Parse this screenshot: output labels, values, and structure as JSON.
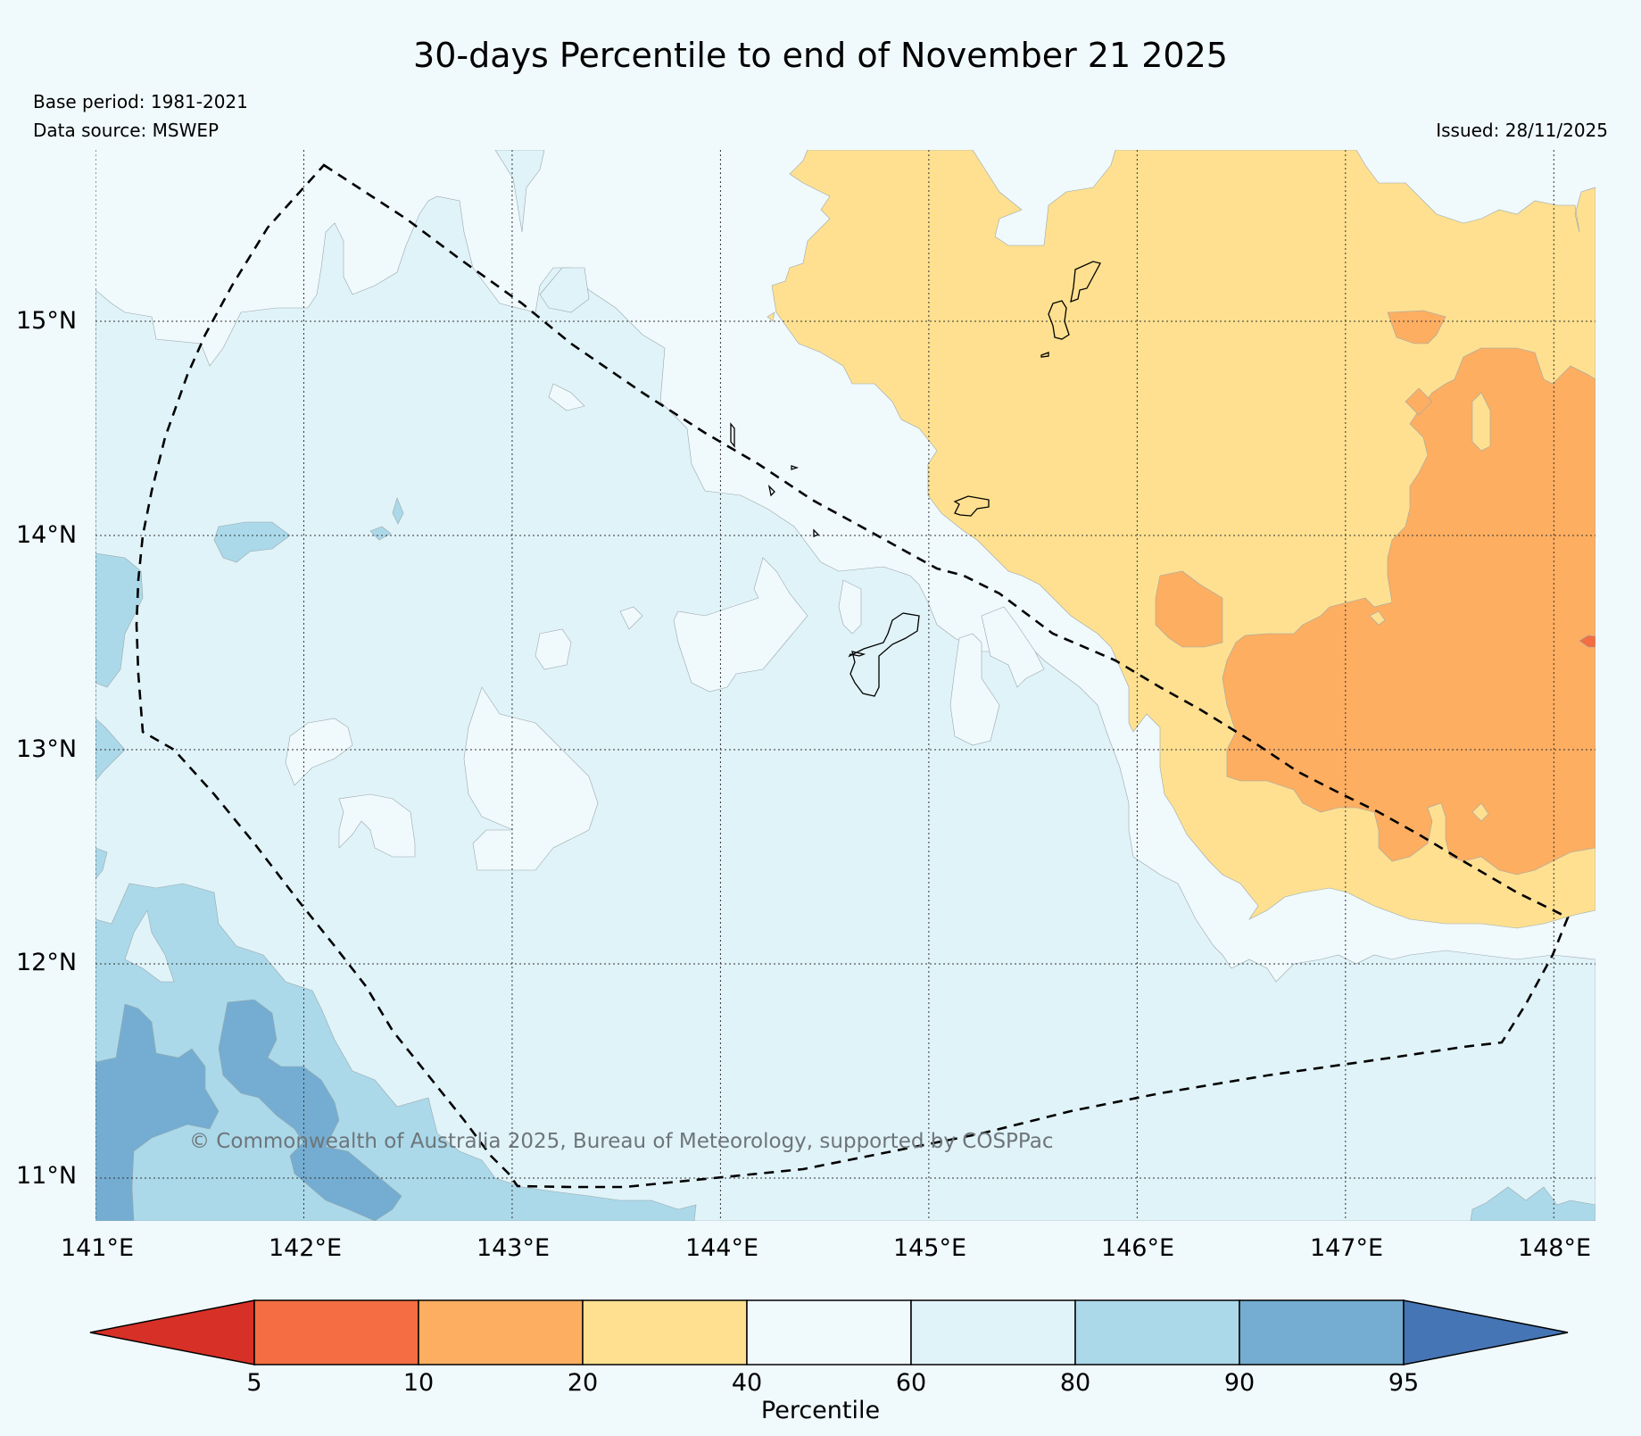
{
  "title": "30-days Percentile to end of November 21 2025",
  "base_period": "Base period: 1981-2021",
  "data_source": "Data source: MSWEP",
  "issued": "Issued: 28/11/2025",
  "copyright": "© Commonwealth of Australia 2025, Bureau of Meteorology, supported by COSPPac",
  "map": {
    "lon_range": [
      141,
      148.2
    ],
    "lat_range": [
      10.8,
      15.8
    ],
    "lon_ticks": [
      "141°E",
      "142°E",
      "143°E",
      "144°E",
      "145°E",
      "146°E",
      "147°E",
      "148°E"
    ],
    "lat_ticks": [
      "15°N",
      "14°N",
      "13°N",
      "12°N",
      "11°N"
    ],
    "grid": true,
    "eez_boundary": "dashed"
  },
  "colorbar": {
    "title": "Percentile",
    "ticks": [
      "5",
      "10",
      "20",
      "40",
      "60",
      "80",
      "90",
      "95"
    ],
    "colors": [
      "#d73027",
      "#f46d43",
      "#fdae61",
      "#fee090",
      "#f0f9fc",
      "#e0f3f8",
      "#abd9e9",
      "#74add1",
      "#4575b4"
    ]
  },
  "colors": {
    "below_40": "#fee090",
    "below_20": "#fdae61",
    "below_10": "#f46d43",
    "above_60": "#e0f3f8",
    "above_80": "#abd9e9",
    "above_90": "#74add1",
    "normal": "#f0f9fc"
  }
}
